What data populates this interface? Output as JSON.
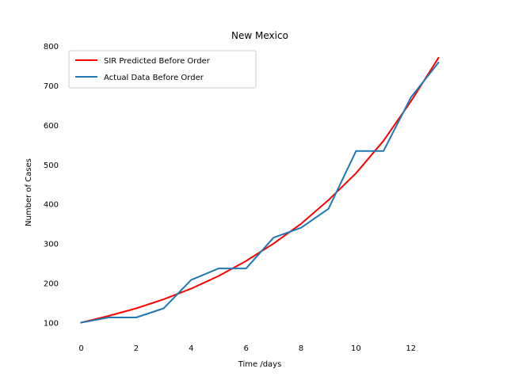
{
  "chart_data": {
    "type": "line",
    "title": "New Mexico",
    "xlabel": "Time /days",
    "ylabel": "Number of Cases",
    "xlim": [
      -0.65,
      13.65
    ],
    "ylim": [
      67,
      800
    ],
    "x_ticks": [
      "0",
      "2",
      "4",
      "6",
      "8",
      "10",
      "12"
    ],
    "x_tick_values": [
      0,
      2,
      4,
      6,
      8,
      10,
      12
    ],
    "y_ticks": [
      "100",
      "200",
      "300",
      "400",
      "500",
      "600",
      "700",
      "800"
    ],
    "y_tick_values": [
      100,
      200,
      300,
      400,
      500,
      600,
      700,
      800
    ],
    "grid": false,
    "legend_position": "top-left",
    "x": [
      0,
      1,
      2,
      3,
      4,
      5,
      6,
      7,
      8,
      9,
      10,
      11,
      12,
      13
    ],
    "series": [
      {
        "name": "SIR Predicted Before Order",
        "color": "#ff0000",
        "values": [
          100,
          117,
          136,
          159,
          186,
          218,
          256,
          300,
          350,
          410,
          478,
          560,
          660,
          770
        ]
      },
      {
        "name": "Actual Data Before Order",
        "color": "#1f77b4",
        "values": [
          100,
          113,
          113,
          136,
          208,
          237,
          237,
          315,
          340,
          388,
          534,
          534,
          670,
          758
        ]
      }
    ]
  }
}
